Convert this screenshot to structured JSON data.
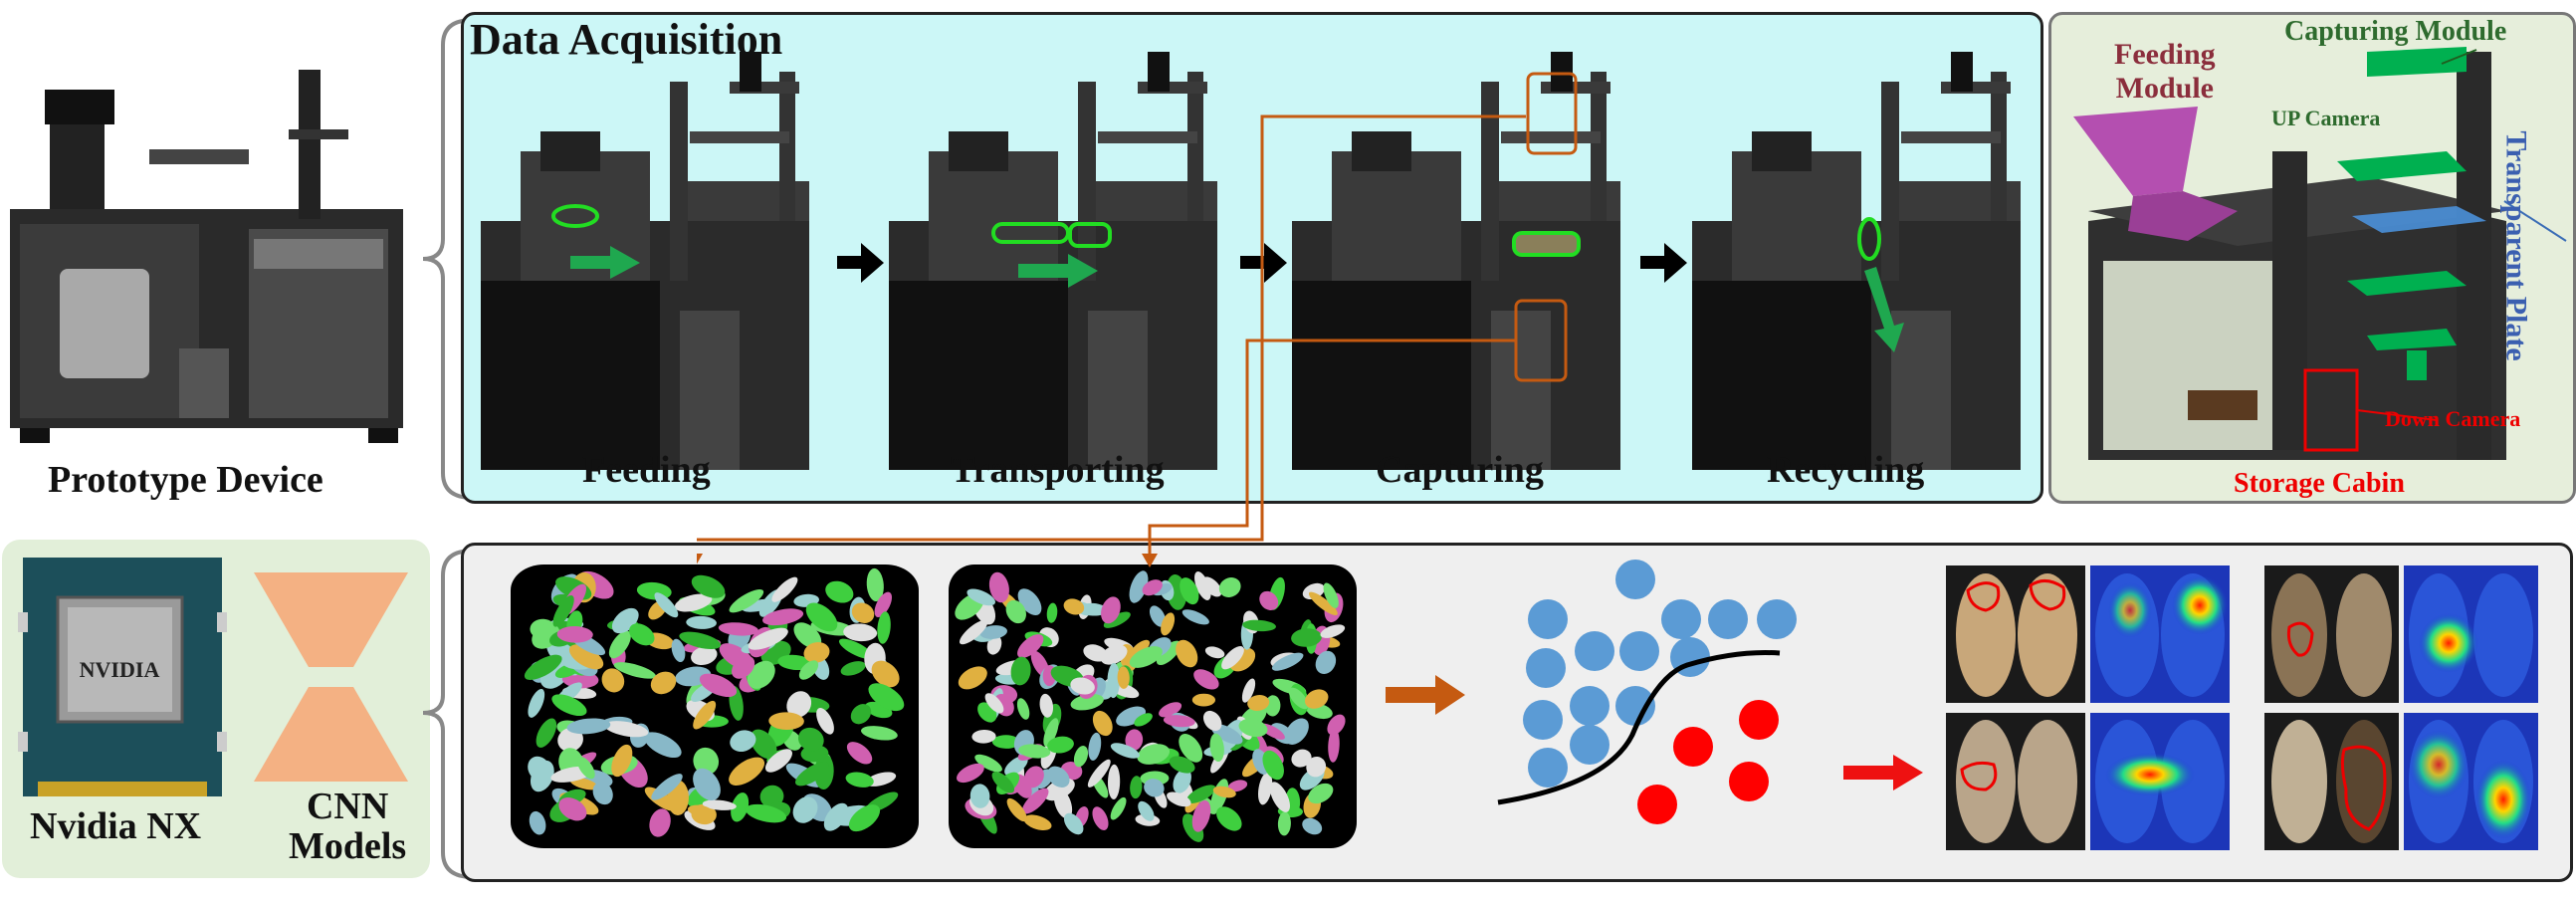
{
  "prototype": {
    "label": "Prototype Device"
  },
  "acquisition": {
    "title": "Data Acquisition",
    "stages": [
      "Feeding",
      "Transporting",
      "Capturing",
      "Recycling"
    ]
  },
  "cad": {
    "feeding_module": "Feeding\nModule",
    "capturing_module": "Capturing Module",
    "up_camera": "UP Camera",
    "transparent_plate": "Transparent Plate",
    "down_camera": "Down Camera",
    "storage_cabin": "Storage Cabin"
  },
  "hardware": {
    "nvidia_nx": "Nvidia NX",
    "chip_text": "NVIDIA",
    "cnn_models": "CNN\nModels"
  },
  "colors": {
    "acq_bg": "#ccf7f7",
    "cad_bg": "#e6eedb",
    "hw_bg": "#e2efd9",
    "analysis_bg": "#efefef",
    "orange": "#c55a11",
    "blue_dot": "#5b9bd5",
    "red_dot": "#ff0000",
    "cnn_shape": "#f4b183",
    "green_module": "#00b050",
    "magenta_module": "#b44fb0"
  }
}
